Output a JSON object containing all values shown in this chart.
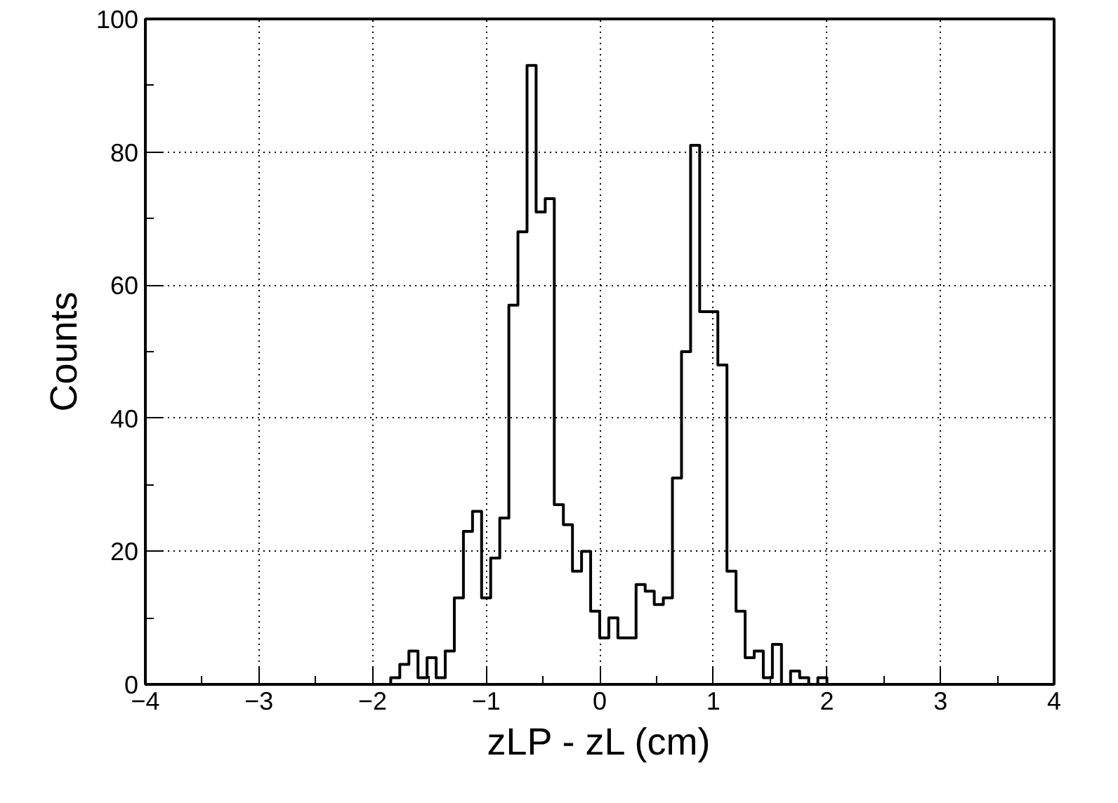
{
  "chart_data": {
    "type": "histogram",
    "xlabel": "zLP - zL (cm)",
    "ylabel": "Counts",
    "color": "#000000",
    "bins": [
      -4,
      -3.92,
      -3.84,
      -3.76,
      -3.68,
      -3.6,
      -3.52,
      -3.44,
      -3.36,
      -3.28,
      -3.2,
      -3.12,
      -3.04,
      -2.96,
      -2.88,
      -2.8,
      -2.72,
      -2.64,
      -2.56,
      -2.48,
      -2.4,
      -2.32,
      -2.24,
      -2.16,
      -2.08,
      -2,
      -1.92,
      -1.84,
      -1.76,
      -1.68,
      -1.6,
      -1.52,
      -1.44,
      -1.36,
      -1.28,
      -1.2,
      -1.12,
      -1.04,
      -0.96,
      -0.88,
      -0.8,
      -0.72,
      -0.64,
      -0.56,
      -0.48,
      -0.4,
      -0.32,
      -0.24,
      -0.16,
      -0.08,
      0,
      0.08,
      0.16,
      0.24,
      0.32,
      0.4,
      0.48,
      0.56,
      0.64,
      0.72,
      0.8,
      0.88,
      0.96,
      1.04,
      1.12,
      1.2,
      1.28,
      1.36,
      1.44,
      1.52,
      1.6,
      1.68,
      1.76,
      1.84,
      1.92,
      2,
      2.08,
      2.16,
      2.24,
      2.32,
      2.4,
      2.48,
      2.56,
      2.64,
      2.72,
      2.8,
      2.88,
      2.96,
      3.04,
      3.12,
      3.2,
      3.28,
      3.36,
      3.44,
      3.52,
      3.6,
      3.68,
      3.76,
      3.84,
      3.92,
      4
    ],
    "values": [
      0,
      0,
      0,
      0,
      0,
      0,
      0,
      0,
      0,
      0,
      0,
      0,
      0,
      0,
      0,
      0,
      0,
      0,
      0,
      0,
      0,
      0,
      0,
      0,
      0,
      0,
      0,
      1,
      3,
      5,
      1,
      4,
      1,
      5,
      13,
      23,
      26,
      13,
      19,
      25,
      57,
      68,
      93,
      71,
      73,
      27,
      24,
      17,
      20,
      11,
      7,
      10,
      7,
      7,
      15,
      14,
      12,
      13,
      31,
      50,
      81,
      56,
      56,
      48,
      17,
      11,
      4,
      5,
      1,
      6,
      0,
      2,
      1,
      0,
      1,
      0,
      0,
      0,
      0,
      0,
      0,
      0,
      0,
      0,
      0,
      0,
      0,
      0,
      0,
      0,
      0,
      0,
      0,
      0,
      0,
      0,
      0,
      0,
      0,
      0
    ],
    "xlim": [
      -4,
      4
    ],
    "xticks": [
      -4,
      -3,
      -2,
      -1,
      0,
      1,
      2,
      3,
      4
    ],
    "ylim": [
      0,
      100
    ],
    "yticks": [
      0,
      20,
      40,
      60,
      80,
      100
    ],
    "grid": true
  }
}
